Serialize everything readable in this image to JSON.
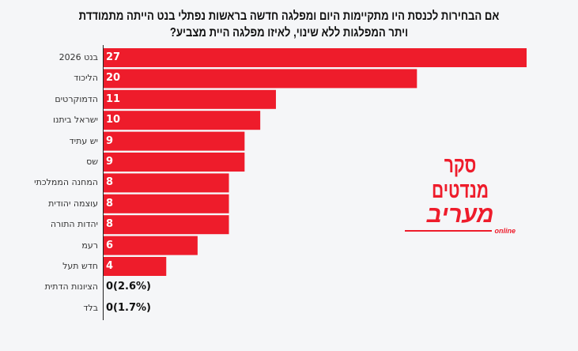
{
  "chart_data": {
    "type": "bar",
    "orientation": "horizontal",
    "title_lines": [
      "אם הבחירות לכנסת היו מתקיימות היום ומפלגה חדשה בראשות נפתלי בנט הייתה מתמודדת",
      "ויתר המפלגות ללא שינוי, לאיזו מפלגה היית מצביע?"
    ],
    "categories": [
      "בנט 2026",
      "הליכוד",
      "הדמוקרטים",
      "ישראל ביתנו",
      "יש עתיד",
      "שס",
      "המחנה הממלכתי",
      "עוצמה יהודית",
      "יהדות התורה",
      "רעמ",
      "חדש תעל",
      "הציונות הדתית",
      "בלד"
    ],
    "values": [
      27,
      20,
      11,
      10,
      9,
      9,
      8,
      8,
      8,
      6,
      4,
      0,
      0
    ],
    "data_labels": [
      "27",
      "20",
      "11",
      "10",
      "9",
      "9",
      "8",
      "8",
      "8",
      "6",
      "4",
      "0(2.6%)",
      "0(1.7%)"
    ],
    "xlim": [
      0,
      27
    ],
    "grid": false,
    "bar_color": "#ee1c2b"
  },
  "logo": {
    "line1": "סקר מנדטים",
    "line2": "מעריב",
    "line3": "online"
  }
}
